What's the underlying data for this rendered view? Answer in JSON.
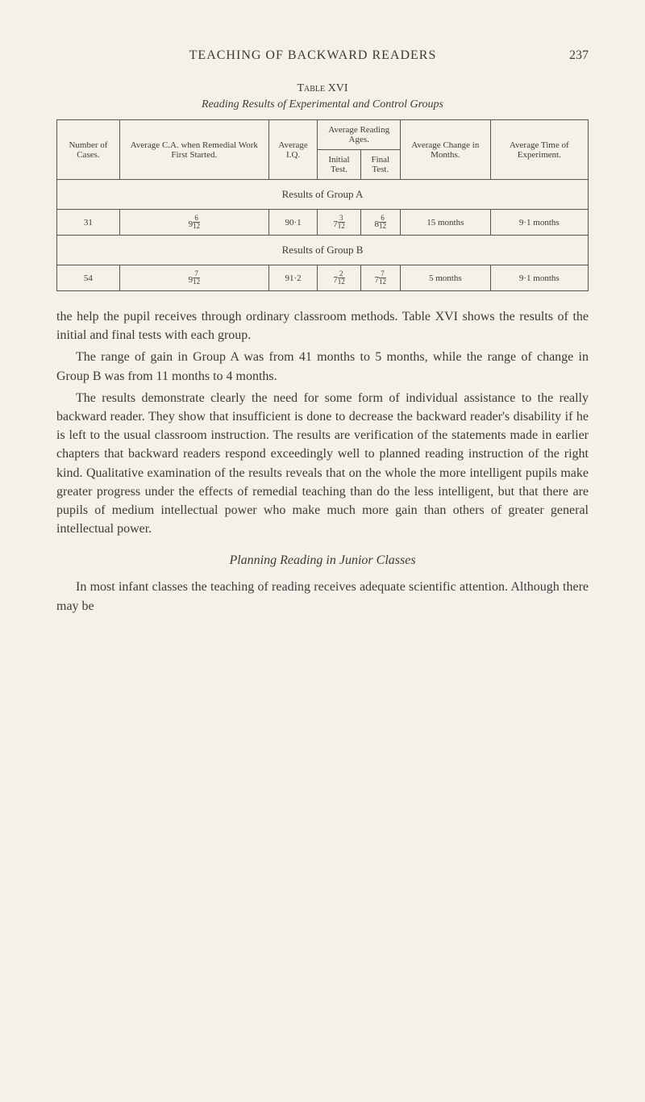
{
  "runningHead": {
    "title": "TEACHING OF BACKWARD READERS",
    "pageNumber": "237"
  },
  "tableLabel": "Table XVI",
  "tableCaption": "Reading Results of Experimental and Control Groups",
  "table": {
    "headers": {
      "col1": "Number of Cases.",
      "col2": "Average C.A. when Remedial Work First Started.",
      "col3": "Average I.Q.",
      "col4_group": "Average Reading Ages.",
      "col4a": "Initial Test.",
      "col4b": "Final Test.",
      "col5": "Average Change in Months.",
      "col6": "Average Time of Experiment."
    },
    "sectionA": "Results of Group A",
    "rowA": {
      "cases": "31",
      "ca_int": "9",
      "ca_num": "6",
      "ca_den": "12",
      "iq": "90·1",
      "init_int": "7",
      "init_num": "3",
      "init_den": "12",
      "final_int": "8",
      "final_num": "6",
      "final_den": "12",
      "change": "15 months",
      "time": "9·1 months"
    },
    "sectionB": "Results of Group B",
    "rowB": {
      "cases": "54",
      "ca_int": "9",
      "ca_num": "7",
      "ca_den": "12",
      "iq": "91·2",
      "init_int": "7",
      "init_num": "2",
      "init_den": "12",
      "final_int": "7",
      "final_num": "7",
      "final_den": "12",
      "change": "5 months",
      "time": "9·1 months"
    }
  },
  "paragraphs": {
    "p1": "the help the pupil receives through ordinary classroom methods. Table XVI shows the results of the initial and final tests with each group.",
    "p2": "The range of gain in Group A was from 41 months to 5 months, while the range of change in Group B was from 11 months to 4 months.",
    "p3": "The results demonstrate clearly the need for some form of individual assistance to the really backward reader. They show that insufficient is done to decrease the backward reader's disability if he is left to the usual classroom instruction. The results are verification of the statements made in earlier chapters that backward readers respond exceedingly well to planned reading instruction of the right kind. Qualitative examination of the results reveals that on the whole the more intelligent pupils make greater progress under the effects of remedial teaching than do the less intelligent, but that there are pupils of medium intellectual power who make much more gain than others of greater general intellectual power.",
    "subhead": "Planning Reading in Junior Classes",
    "p4": "In most infant classes the teaching of reading receives adequate scientific attention. Although there may be"
  }
}
